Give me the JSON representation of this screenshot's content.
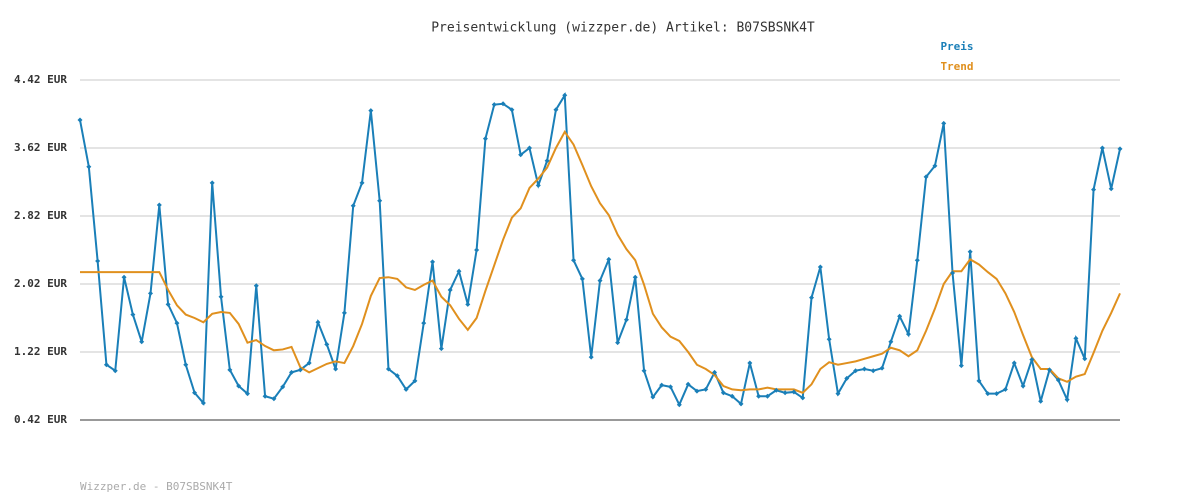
{
  "chart_data": {
    "type": "line",
    "title": "Preisentwicklung (wizzper.de) Artikel: B07SBSNK4T",
    "footer": "Wizzper.de - B07SBSNK4T",
    "legend": "top-right",
    "grid": true,
    "ylim": [
      0.42,
      4.42
    ],
    "yticks": [
      {
        "value": 0.42,
        "label": "0.42 EUR"
      },
      {
        "value": 1.22,
        "label": "1.22 EUR"
      },
      {
        "value": 2.02,
        "label": "2.02 EUR"
      },
      {
        "value": 2.82,
        "label": "2.82 EUR"
      },
      {
        "value": 3.62,
        "label": "3.62 EUR"
      },
      {
        "value": 4.42,
        "label": "4.42 EUR"
      }
    ],
    "series": [
      {
        "name": "Preis",
        "color": "#1a7fb8",
        "markers": true,
        "values": [
          3.95,
          3.4,
          2.29,
          1.07,
          1.0,
          2.1,
          1.66,
          1.34,
          1.91,
          2.95,
          1.78,
          1.56,
          1.07,
          0.74,
          0.62,
          3.21,
          1.87,
          1.01,
          0.82,
          0.73,
          2.0,
          0.7,
          0.67,
          0.81,
          0.98,
          1.01,
          1.09,
          1.57,
          1.31,
          1.02,
          1.68,
          2.94,
          3.21,
          4.06,
          3.0,
          1.02,
          0.94,
          0.78,
          0.88,
          1.56,
          2.28,
          1.26,
          1.95,
          2.17,
          1.78,
          2.42,
          3.73,
          4.13,
          4.14,
          4.07,
          3.54,
          3.62,
          3.18,
          3.47,
          4.07,
          4.24,
          2.3,
          2.08,
          1.16,
          2.06,
          2.31,
          1.33,
          1.6,
          2.1,
          1.0,
          0.69,
          0.83,
          0.81,
          0.6,
          0.84,
          0.76,
          0.78,
          0.98,
          0.74,
          0.7,
          0.61,
          1.09,
          0.7,
          0.7,
          0.77,
          0.74,
          0.75,
          0.68,
          1.86,
          2.22,
          1.37,
          0.73,
          0.91,
          1.0,
          1.02,
          1.0,
          1.03,
          1.34,
          1.64,
          1.43,
          2.3,
          3.28,
          3.41,
          3.91,
          2.15,
          1.06,
          2.4,
          0.88,
          0.73,
          0.73,
          0.78,
          1.09,
          0.82,
          1.13,
          0.64,
          1.01,
          0.89,
          0.66,
          1.38,
          1.14,
          3.13,
          3.62,
          3.14,
          3.61
        ]
      },
      {
        "name": "Trend",
        "color": "#e0901e",
        "markers": false,
        "values": [
          2.16,
          2.16,
          2.16,
          2.16,
          2.16,
          2.16,
          2.16,
          2.16,
          2.16,
          2.16,
          1.95,
          1.77,
          1.66,
          1.62,
          1.57,
          1.67,
          1.69,
          1.68,
          1.55,
          1.33,
          1.36,
          1.29,
          1.24,
          1.25,
          1.28,
          1.04,
          0.98,
          1.03,
          1.08,
          1.11,
          1.09,
          1.29,
          1.55,
          1.88,
          2.09,
          2.1,
          2.08,
          1.98,
          1.95,
          2.01,
          2.06,
          1.87,
          1.77,
          1.61,
          1.48,
          1.62,
          1.94,
          2.24,
          2.54,
          2.8,
          2.91,
          3.15,
          3.26,
          3.39,
          3.62,
          3.81,
          3.66,
          3.42,
          3.17,
          2.97,
          2.83,
          2.6,
          2.43,
          2.3,
          2.01,
          1.67,
          1.51,
          1.4,
          1.35,
          1.22,
          1.07,
          1.02,
          0.95,
          0.82,
          0.78,
          0.77,
          0.78,
          0.78,
          0.8,
          0.78,
          0.78,
          0.78,
          0.74,
          0.84,
          1.02,
          1.1,
          1.07,
          1.09,
          1.11,
          1.14,
          1.17,
          1.2,
          1.27,
          1.24,
          1.17,
          1.24,
          1.47,
          1.73,
          2.02,
          2.17,
          2.17,
          2.31,
          2.25,
          2.16,
          2.08,
          1.91,
          1.69,
          1.42,
          1.16,
          1.02,
          1.02,
          0.91,
          0.87,
          0.93,
          0.96,
          1.21,
          1.47,
          1.68,
          1.91
        ]
      }
    ]
  }
}
